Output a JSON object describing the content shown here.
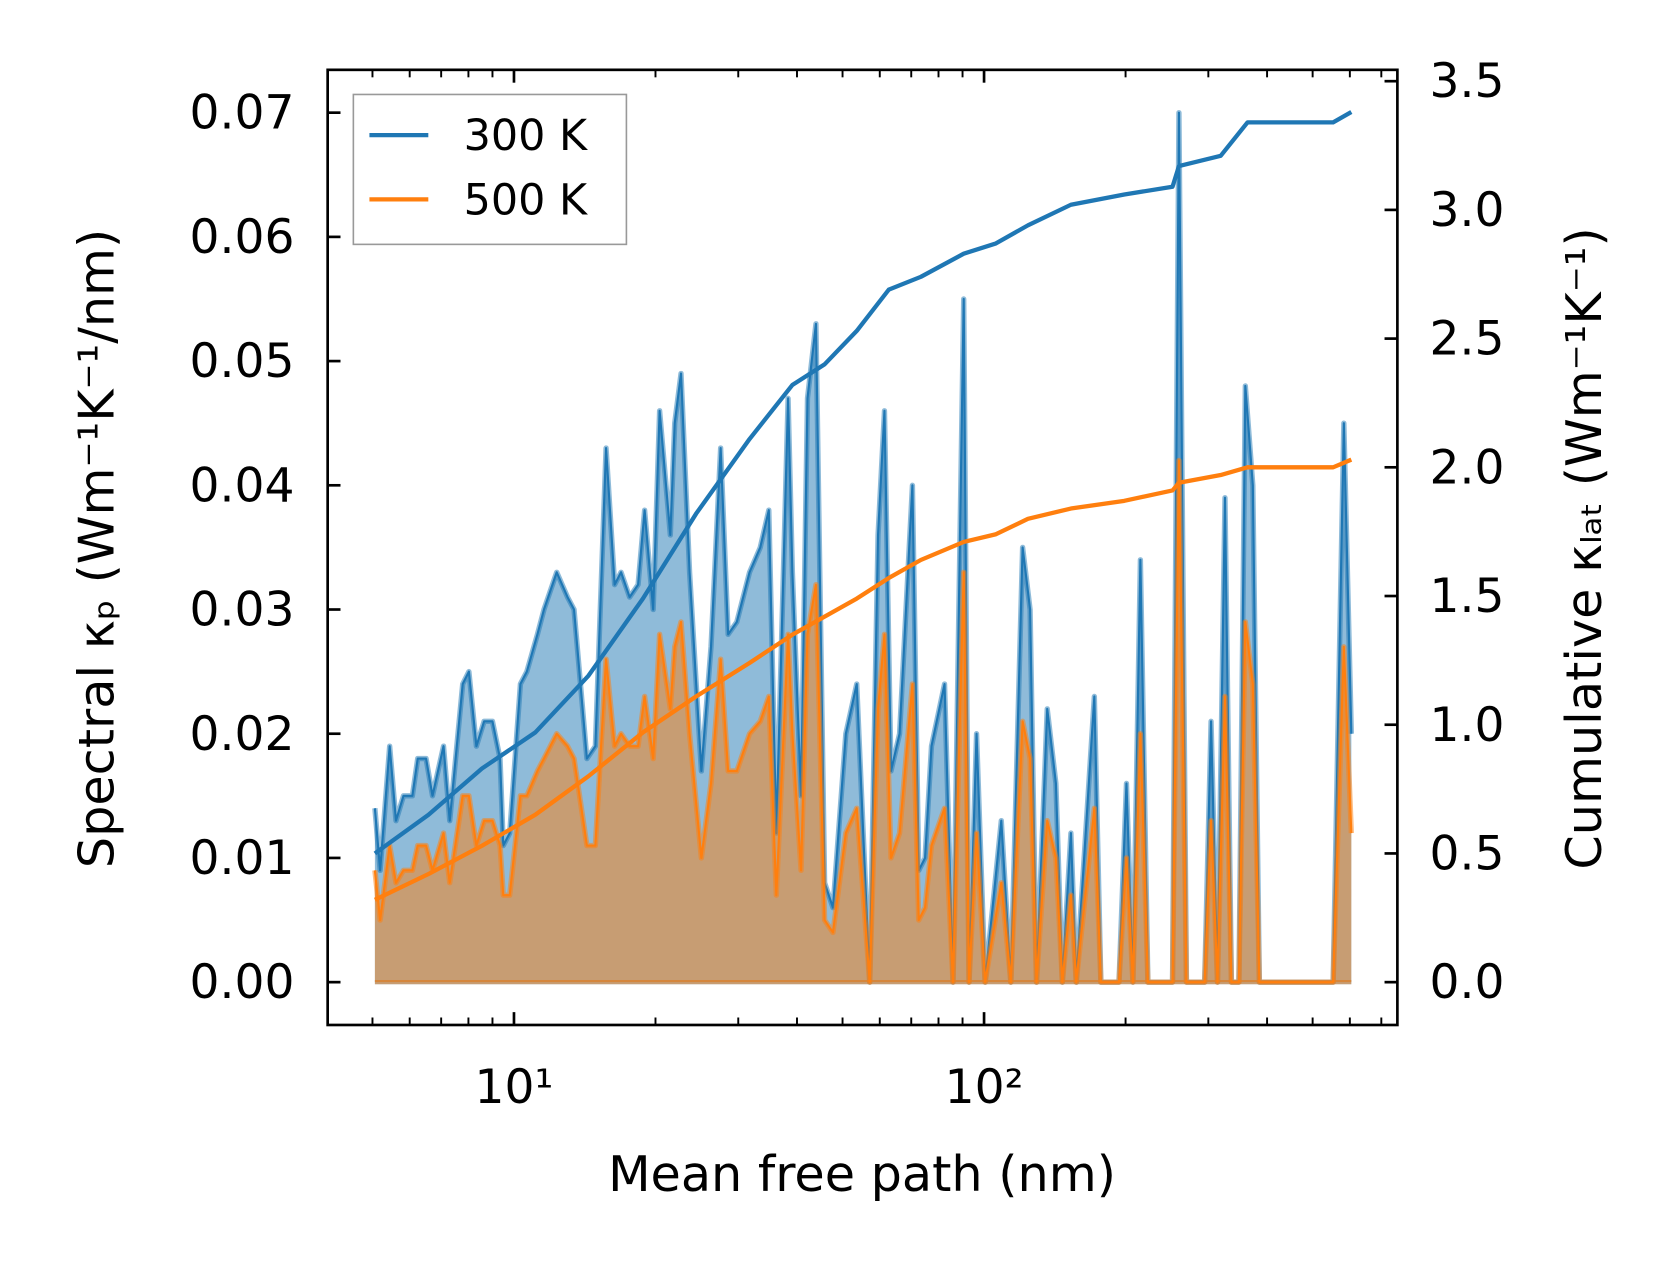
{
  "chart_data": {
    "type": "line",
    "xlabel": "Mean free path (nm)",
    "ylabel": "Spectral κₚ (Wm⁻¹K⁻¹/nm)",
    "ylabel_right": "Cumulative κₗₐₜ (Wm⁻¹K⁻¹)",
    "xscale": "log",
    "xlim": [
      4.0,
      757
    ],
    "ylim": [
      -0.0035,
      0.0735
    ],
    "ylim_right": [
      -0.17,
      3.55
    ],
    "x_ticks": [
      {
        "value": 10,
        "label": "10¹"
      },
      {
        "value": 100,
        "label": "10²"
      }
    ],
    "y_ticks": [
      {
        "value": 0.0,
        "label": "0.00"
      },
      {
        "value": 0.01,
        "label": "0.01"
      },
      {
        "value": 0.02,
        "label": "0.02"
      },
      {
        "value": 0.03,
        "label": "0.03"
      },
      {
        "value": 0.04,
        "label": "0.04"
      },
      {
        "value": 0.05,
        "label": "0.05"
      },
      {
        "value": 0.06,
        "label": "0.06"
      },
      {
        "value": 0.07,
        "label": "0.07"
      }
    ],
    "y_ticks_right": [
      {
        "value": 0.0,
        "label": "0.0"
      },
      {
        "value": 0.5,
        "label": "0.5"
      },
      {
        "value": 1.0,
        "label": "1.0"
      },
      {
        "value": 1.5,
        "label": "1.5"
      },
      {
        "value": 2.0,
        "label": "2.0"
      },
      {
        "value": 2.5,
        "label": "2.5"
      },
      {
        "value": 3.0,
        "label": "3.0"
      },
      {
        "value": 3.5,
        "label": "3.5"
      }
    ],
    "legend": {
      "placement": "upper-left",
      "entries": [
        "300 K",
        "500 K"
      ]
    },
    "colors": {
      "300 K": "#1f77b4",
      "500 K": "#ff7f0e"
    },
    "spectral": {
      "x": [
        5.06,
        5.19,
        5.44,
        5.61,
        5.82,
        6.08,
        6.24,
        6.5,
        6.71,
        7.08,
        7.3,
        7.78,
        8.02,
        8.32,
        8.64,
        9.0,
        9.34,
        9.49,
        9.79,
        10.32,
        10.65,
        11.22,
        11.58,
        12.33,
        13.0,
        13.42,
        14.29,
        14.9,
        15.7,
        16.37,
        16.9,
        17.62,
        18.37,
        18.96,
        19.78,
        20.41,
        21.51,
        21.97,
        22.67,
        23.64,
        25.04,
        26.25,
        27.52,
        28.55,
        29.78,
        31.7,
        33.41,
        34.84,
        36.15,
        38.3,
        39.1,
        40.8,
        42.1,
        43.9,
        45.8,
        47.7,
        50.8,
        53.6,
        57.1,
        59.5,
        61.4,
        63.4,
        66.1,
        70.4,
        72.6,
        74.9,
        77.3,
        82.4,
        85.9,
        90.5,
        92.9,
        96.4,
        100.5,
        108.8,
        114.0,
        120.8,
        125.3,
        129.3,
        136.3,
        142.2,
        146.7,
        153.0,
        157.1,
        171.6,
        177.2,
        193.6,
        200.9,
        207.3,
        215.1,
        223.1,
        251.7,
        259.8,
        269.5,
        294.6,
        304.1,
        313.8,
        325.5,
        335.9,
        348.4,
        359.6,
        373.1,
        385.1,
        552.8,
        582.6,
        604.3
      ],
      "series": [
        {
          "name": "300 K",
          "values": [
            0.014,
            0.009,
            0.019,
            0.013,
            0.015,
            0.015,
            0.018,
            0.018,
            0.015,
            0.019,
            0.013,
            0.024,
            0.025,
            0.019,
            0.021,
            0.021,
            0.018,
            0.011,
            0.012,
            0.024,
            0.025,
            0.028,
            0.03,
            0.033,
            0.031,
            0.03,
            0.018,
            0.019,
            0.043,
            0.032,
            0.033,
            0.031,
            0.032,
            0.038,
            0.03,
            0.046,
            0.036,
            0.045,
            0.049,
            0.033,
            0.017,
            0.027,
            0.043,
            0.028,
            0.029,
            0.033,
            0.035,
            0.038,
            0.012,
            0.047,
            0.033,
            0.015,
            0.047,
            0.053,
            0.008,
            0.006,
            0.02,
            0.024,
            0.0,
            0.036,
            0.046,
            0.017,
            0.02,
            0.04,
            0.009,
            0.01,
            0.019,
            0.024,
            0.0,
            0.055,
            0.0,
            0.02,
            0.0,
            0.013,
            0.0,
            0.035,
            0.03,
            0.0,
            0.022,
            0.016,
            0.0,
            0.012,
            0.0,
            0.023,
            0.0,
            0.0,
            0.016,
            0.0,
            0.034,
            0.0,
            0.0,
            0.07,
            0.0,
            0.0,
            0.021,
            0.0,
            0.039,
            0.0,
            0.0,
            0.048,
            0.04,
            0.0,
            0.0,
            0.045,
            0.02
          ]
        },
        {
          "name": "500 K",
          "values": [
            0.009,
            0.005,
            0.011,
            0.008,
            0.009,
            0.009,
            0.011,
            0.011,
            0.009,
            0.012,
            0.008,
            0.015,
            0.015,
            0.011,
            0.013,
            0.013,
            0.011,
            0.007,
            0.007,
            0.015,
            0.015,
            0.017,
            0.018,
            0.02,
            0.019,
            0.018,
            0.011,
            0.011,
            0.026,
            0.019,
            0.02,
            0.019,
            0.019,
            0.023,
            0.018,
            0.028,
            0.022,
            0.027,
            0.029,
            0.02,
            0.01,
            0.016,
            0.026,
            0.017,
            0.017,
            0.02,
            0.021,
            0.023,
            0.007,
            0.028,
            0.02,
            0.009,
            0.028,
            0.032,
            0.005,
            0.004,
            0.012,
            0.014,
            0.0,
            0.022,
            0.028,
            0.01,
            0.012,
            0.024,
            0.005,
            0.006,
            0.011,
            0.014,
            0.0,
            0.033,
            0.0,
            0.012,
            0.0,
            0.008,
            0.0,
            0.021,
            0.018,
            0.0,
            0.013,
            0.01,
            0.0,
            0.007,
            0.0,
            0.014,
            0.0,
            0.0,
            0.01,
            0.0,
            0.02,
            0.0,
            0.0,
            0.042,
            0.0,
            0.0,
            0.013,
            0.0,
            0.023,
            0.0,
            0.0,
            0.029,
            0.024,
            0.0,
            0.0,
            0.027,
            0.012
          ]
        }
      ]
    },
    "cumulative": {
      "axis": "right",
      "x": [
        5.06,
        6.58,
        8.55,
        11.1,
        14.4,
        18.8,
        24.4,
        31.7,
        39.1,
        45.8,
        53.6,
        62.7,
        73.4,
        90.5,
        106,
        124,
        153,
        198.8,
        251.7,
        259.8,
        318.7,
        363.4,
        552.8,
        604.3
      ],
      "series": [
        {
          "name": "300 K",
          "values": [
            0.5,
            0.65,
            0.83,
            0.97,
            1.19,
            1.49,
            1.82,
            2.11,
            2.32,
            2.4,
            2.53,
            2.69,
            2.74,
            2.83,
            2.87,
            2.94,
            3.02,
            3.06,
            3.09,
            3.17,
            3.21,
            3.34,
            3.34,
            3.38
          ]
        },
        {
          "name": "500 K",
          "values": [
            0.32,
            0.42,
            0.53,
            0.65,
            0.8,
            0.97,
            1.11,
            1.24,
            1.35,
            1.42,
            1.49,
            1.57,
            1.64,
            1.71,
            1.74,
            1.8,
            1.84,
            1.87,
            1.91,
            1.94,
            1.97,
            2.0,
            2.0,
            2.03
          ]
        }
      ]
    }
  }
}
